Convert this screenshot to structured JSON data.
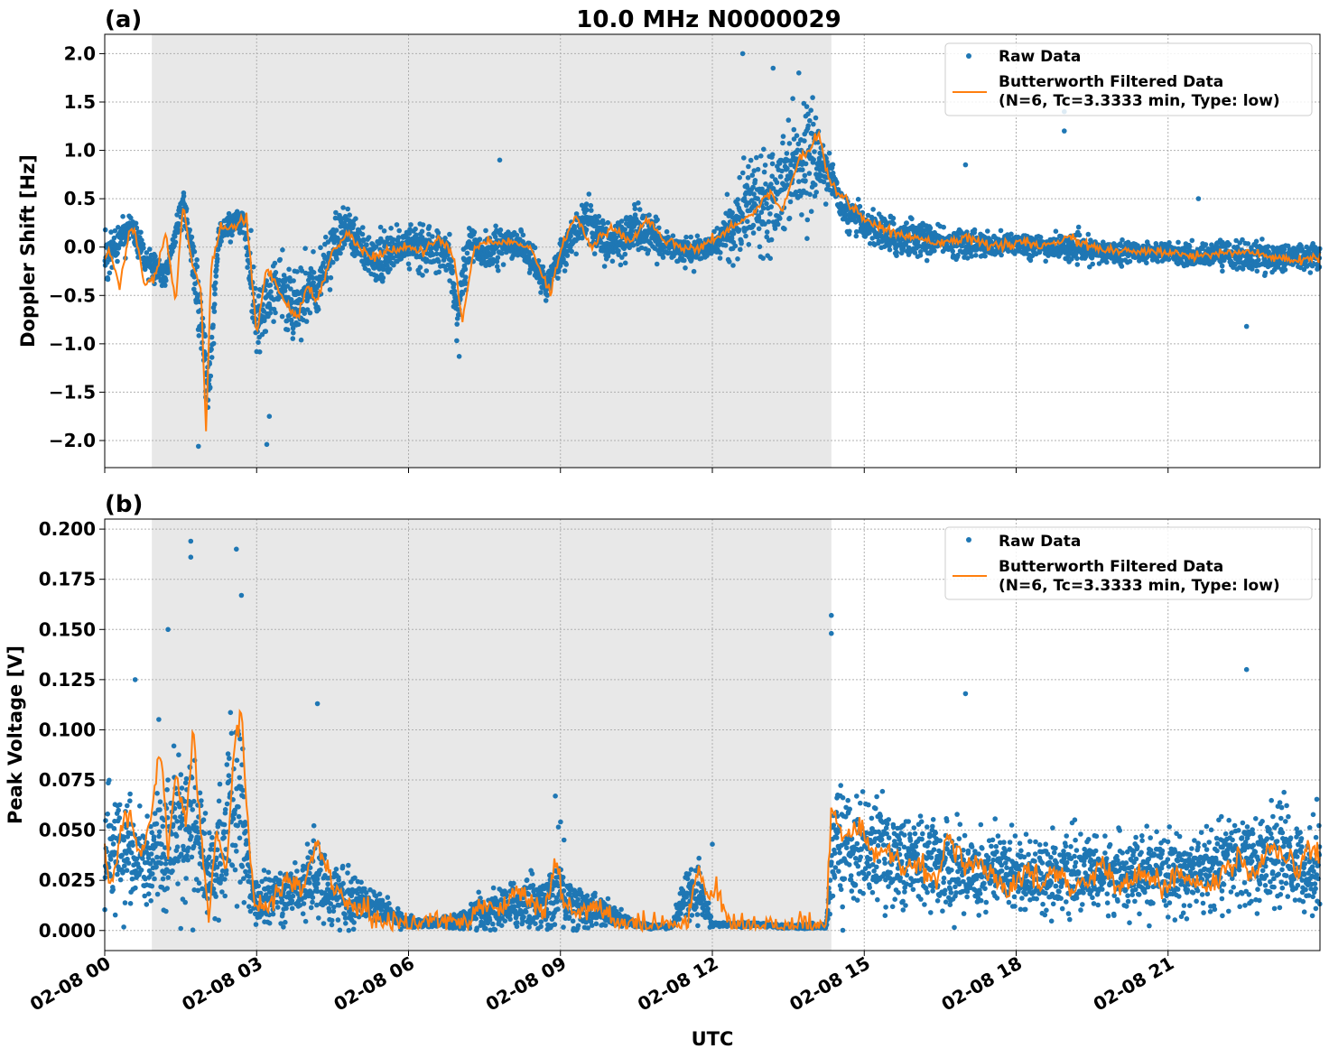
{
  "figure": {
    "title": "10.0 MHz N0000029",
    "xlabel": "UTC",
    "x_tick_labels": [
      "02-08 00",
      "02-08 03",
      "02-08 06",
      "02-08 09",
      "02-08 12",
      "02-08 15",
      "02-08 18",
      "02-08 21"
    ],
    "night_shading_hours": [
      0.93,
      14.35
    ],
    "colors": {
      "raw": "#1f77b4",
      "filtered": "#ff7f0e",
      "shade": "#e8e8e8",
      "grid": "#b0b0b0"
    }
  },
  "legend": {
    "raw_label": "Raw Data",
    "filtered_label_line1": "Butterworth Filtered Data",
    "filtered_label_line2": "(N=6, Tc=3.3333 min, Type: low)"
  },
  "chart_data": [
    {
      "panel": "(a)",
      "type": "line",
      "ylabel": "Doppler Shift [Hz]",
      "xlim_hours": [
        0,
        24
      ],
      "ylim": [
        -2.28,
        2.2
      ],
      "y_ticks": [
        -2.0,
        -1.5,
        -1.0,
        -0.5,
        0.0,
        0.5,
        1.0,
        1.5,
        2.0
      ],
      "y_tick_labels": [
        "−2.0",
        "−1.5",
        "−1.0",
        "−0.5",
        "0.0",
        "0.5",
        "1.0",
        "1.5",
        "2.0"
      ],
      "grid": true,
      "legend_position": "top-right",
      "series": [
        {
          "name": "Raw Data",
          "style": "points",
          "hours": [
            0.0,
            0.5,
            0.9,
            1.2,
            1.55,
            1.8,
            2.05,
            2.25,
            2.6,
            2.75,
            3.0,
            3.4,
            3.8,
            4.0,
            4.2,
            4.5,
            4.8,
            5.2,
            5.5,
            6.0,
            6.5,
            6.8,
            6.95,
            7.2,
            7.5,
            7.9,
            8.3,
            8.7,
            9.1,
            9.5,
            10.0,
            10.5,
            11.0,
            11.5,
            12.0,
            12.4,
            12.8,
            13.2,
            13.6,
            13.9,
            14.3,
            14.6,
            15.0,
            15.5,
            16.0,
            16.5,
            17.0,
            17.5,
            18.0,
            18.5,
            19.0,
            19.5,
            20.0,
            20.5,
            21.0,
            21.5,
            22.0,
            22.5,
            23.0,
            23.5,
            24.0
          ],
          "center": [
            -0.1,
            0.2,
            -0.2,
            -0.3,
            0.45,
            -0.3,
            -1.5,
            0.1,
            0.3,
            0.25,
            -0.8,
            -0.35,
            -0.7,
            -0.5,
            -0.45,
            0.05,
            0.2,
            -0.1,
            -0.1,
            0.05,
            -0.05,
            -0.1,
            -0.7,
            0.05,
            -0.05,
            0.0,
            0.0,
            -0.4,
            0.0,
            0.3,
            0.0,
            0.2,
            0.05,
            -0.05,
            0.0,
            0.2,
            0.5,
            0.55,
            0.9,
            0.95,
            0.8,
            0.35,
            0.25,
            0.1,
            0.1,
            0.05,
            0.05,
            0.0,
            0.05,
            0.0,
            0.0,
            -0.05,
            -0.05,
            -0.05,
            -0.05,
            -0.1,
            -0.05,
            -0.1,
            -0.1,
            -0.1,
            -0.1
          ],
          "spread": [
            0.25,
            0.12,
            0.2,
            0.12,
            0.12,
            0.3,
            0.35,
            0.12,
            0.1,
            0.12,
            0.45,
            0.3,
            0.35,
            0.3,
            0.3,
            0.25,
            0.25,
            0.2,
            0.25,
            0.2,
            0.22,
            0.2,
            0.25,
            0.2,
            0.2,
            0.2,
            0.2,
            0.15,
            0.2,
            0.2,
            0.2,
            0.25,
            0.15,
            0.12,
            0.1,
            0.3,
            0.5,
            0.5,
            0.5,
            0.55,
            0.2,
            0.15,
            0.15,
            0.2,
            0.2,
            0.12,
            0.15,
            0.12,
            0.12,
            0.12,
            0.12,
            0.12,
            0.1,
            0.1,
            0.1,
            0.1,
            0.12,
            0.15,
            0.15,
            0.12,
            0.15
          ],
          "outliers": [
            [
              1.85,
              -2.06
            ],
            [
              3.2,
              -2.04
            ],
            [
              3.25,
              -1.75
            ],
            [
              12.6,
              2.0
            ],
            [
              13.2,
              1.85
            ],
            [
              18.95,
              1.4
            ],
            [
              18.95,
              1.2
            ],
            [
              17.0,
              0.85
            ],
            [
              21.6,
              0.5
            ],
            [
              22.55,
              -0.82
            ],
            [
              7.8,
              0.9
            ],
            [
              7.0,
              -1.13
            ]
          ]
        },
        {
          "name": "Butterworth Filtered Data",
          "style": "line",
          "hours": [
            0.0,
            0.1,
            0.3,
            0.5,
            0.6,
            0.8,
            1.0,
            1.2,
            1.4,
            1.55,
            1.7,
            1.9,
            2.0,
            2.1,
            2.3,
            2.5,
            2.8,
            3.0,
            3.2,
            3.5,
            3.8,
            4.0,
            4.2,
            4.5,
            4.8,
            5.0,
            5.3,
            5.6,
            6.0,
            6.3,
            6.6,
            6.9,
            7.05,
            7.3,
            7.6,
            8.0,
            8.4,
            8.8,
            9.0,
            9.3,
            9.6,
            10.0,
            10.4,
            10.7,
            11.0,
            11.4,
            11.8,
            12.2,
            12.5,
            12.8,
            13.1,
            13.4,
            13.7,
            13.9,
            14.1,
            14.3,
            14.6,
            15.0,
            15.5,
            16.0,
            16.5,
            17.0,
            17.5,
            18.0,
            18.5,
            19.0,
            19.5,
            20.0,
            20.5,
            21.0,
            21.5,
            22.0,
            22.5,
            23.0,
            23.5,
            24.0
          ],
          "values": [
            -0.1,
            -0.05,
            -0.4,
            0.2,
            0.15,
            -0.4,
            -0.3,
            0.15,
            -0.55,
            0.45,
            -0.1,
            -0.45,
            -1.9,
            -0.2,
            0.2,
            0.2,
            0.3,
            -0.9,
            -0.2,
            -0.5,
            -0.75,
            -0.4,
            -0.55,
            -0.05,
            0.15,
            0.0,
            -0.1,
            -0.05,
            0.0,
            -0.05,
            0.1,
            -0.1,
            -0.8,
            0.0,
            0.05,
            0.05,
            0.0,
            -0.45,
            -0.05,
            0.35,
            0.0,
            0.2,
            0.05,
            0.3,
            0.1,
            0.0,
            0.0,
            0.15,
            0.25,
            0.35,
            0.55,
            0.4,
            0.9,
            1.0,
            1.2,
            0.7,
            0.5,
            0.3,
            0.15,
            0.1,
            0.05,
            0.1,
            0.0,
            0.05,
            0.0,
            0.1,
            0.0,
            -0.05,
            -0.05,
            -0.05,
            -0.1,
            -0.05,
            -0.05,
            -0.1,
            -0.15,
            -0.1
          ]
        }
      ]
    },
    {
      "panel": "(b)",
      "type": "line",
      "ylabel": "Peak Voltage [V]",
      "xlim_hours": [
        0,
        24
      ],
      "ylim": [
        -0.01,
        0.205
      ],
      "y_ticks": [
        0.0,
        0.025,
        0.05,
        0.075,
        0.1,
        0.125,
        0.15,
        0.175,
        0.2
      ],
      "y_tick_labels": [
        "0.000",
        "0.025",
        "0.050",
        "0.075",
        "0.100",
        "0.125",
        "0.150",
        "0.175",
        "0.200"
      ],
      "grid": true,
      "legend_position": "top-right",
      "series": [
        {
          "name": "Raw Data",
          "style": "points",
          "hours": [
            0.0,
            0.3,
            0.6,
            0.9,
            1.1,
            1.3,
            1.5,
            1.7,
            1.9,
            2.1,
            2.3,
            2.5,
            2.7,
            2.9,
            3.2,
            3.5,
            3.8,
            4.1,
            4.4,
            4.8,
            5.2,
            5.6,
            5.9,
            6.2,
            6.6,
            7.0,
            7.4,
            7.7,
            8.0,
            8.4,
            8.7,
            9.0,
            9.3,
            9.7,
            10.0,
            10.4,
            10.8,
            11.2,
            11.5,
            11.8,
            12.0,
            12.3,
            12.6,
            13.0,
            13.4,
            13.8,
            14.1,
            14.25,
            14.4,
            14.8,
            15.3,
            15.8,
            16.3,
            16.8,
            17.3,
            17.8,
            18.3,
            18.8,
            19.3,
            19.8,
            20.3,
            20.8,
            21.3,
            21.8,
            22.3,
            22.8,
            23.3,
            23.7,
            24.0
          ],
          "center": [
            0.035,
            0.045,
            0.035,
            0.03,
            0.045,
            0.045,
            0.05,
            0.055,
            0.04,
            0.025,
            0.04,
            0.06,
            0.06,
            0.015,
            0.015,
            0.02,
            0.02,
            0.03,
            0.02,
            0.015,
            0.015,
            0.008,
            0.005,
            0.004,
            0.004,
            0.005,
            0.008,
            0.01,
            0.012,
            0.015,
            0.012,
            0.02,
            0.012,
            0.01,
            0.007,
            0.004,
            0.002,
            0.002,
            0.02,
            0.015,
            0.003,
            0.003,
            0.003,
            0.003,
            0.002,
            0.002,
            0.002,
            0.002,
            0.045,
            0.04,
            0.04,
            0.035,
            0.035,
            0.03,
            0.03,
            0.03,
            0.028,
            0.028,
            0.028,
            0.028,
            0.028,
            0.028,
            0.028,
            0.03,
            0.035,
            0.035,
            0.038,
            0.03,
            0.035
          ],
          "spread": [
            0.025,
            0.03,
            0.022,
            0.025,
            0.03,
            0.035,
            0.04,
            0.04,
            0.03,
            0.02,
            0.03,
            0.045,
            0.04,
            0.01,
            0.012,
            0.015,
            0.012,
            0.02,
            0.015,
            0.012,
            0.01,
            0.006,
            0.003,
            0.002,
            0.002,
            0.004,
            0.008,
            0.01,
            0.01,
            0.015,
            0.01,
            0.025,
            0.01,
            0.008,
            0.006,
            0.002,
            0.001,
            0.001,
            0.012,
            0.01,
            0.001,
            0.001,
            0.001,
            0.001,
            0.001,
            0.001,
            0.001,
            0.001,
            0.03,
            0.025,
            0.025,
            0.022,
            0.022,
            0.02,
            0.02,
            0.018,
            0.017,
            0.017,
            0.017,
            0.017,
            0.017,
            0.017,
            0.017,
            0.02,
            0.022,
            0.022,
            0.025,
            0.018,
            0.025
          ],
          "outliers": [
            [
              1.7,
              0.194
            ],
            [
              1.7,
              0.186
            ],
            [
              2.6,
              0.19
            ],
            [
              2.7,
              0.167
            ],
            [
              1.25,
              0.15
            ],
            [
              0.6,
              0.125
            ],
            [
              14.35,
              0.157
            ],
            [
              14.35,
              0.148
            ],
            [
              22.55,
              0.13
            ],
            [
              17.0,
              0.118
            ],
            [
              4.2,
              0.113
            ],
            [
              8.9,
              0.067
            ],
            [
              12.0,
              0.043
            ]
          ]
        },
        {
          "name": "Butterworth Filtered Data",
          "style": "line",
          "hours": [
            0.0,
            0.15,
            0.3,
            0.5,
            0.7,
            0.9,
            1.1,
            1.25,
            1.4,
            1.6,
            1.75,
            1.9,
            2.05,
            2.2,
            2.4,
            2.55,
            2.7,
            2.85,
            3.0,
            3.3,
            3.6,
            3.9,
            4.2,
            4.5,
            4.8,
            5.1,
            5.4,
            5.7,
            6.0,
            6.4,
            6.8,
            7.2,
            7.5,
            7.8,
            8.1,
            8.4,
            8.7,
            8.9,
            9.1,
            9.4,
            9.7,
            10.0,
            10.3,
            10.6,
            10.9,
            11.2,
            11.5,
            11.7,
            11.9,
            12.1,
            12.3,
            12.6,
            13.0,
            13.4,
            13.8,
            14.1,
            14.25,
            14.35,
            14.6,
            14.9,
            15.2,
            15.5,
            15.8,
            16.1,
            16.4,
            16.7,
            17.0,
            17.3,
            17.6,
            17.9,
            18.2,
            18.5,
            18.8,
            19.1,
            19.4,
            19.7,
            20.0,
            20.3,
            20.6,
            20.9,
            21.2,
            21.5,
            21.8,
            22.1,
            22.4,
            22.7,
            23.0,
            23.3,
            23.6,
            23.8,
            24.0
          ],
          "values": [
            0.04,
            0.02,
            0.05,
            0.06,
            0.035,
            0.055,
            0.09,
            0.04,
            0.075,
            0.055,
            0.1,
            0.045,
            0.005,
            0.05,
            0.03,
            0.09,
            0.11,
            0.04,
            0.01,
            0.015,
            0.025,
            0.02,
            0.045,
            0.02,
            0.015,
            0.01,
            0.005,
            0.004,
            0.003,
            0.004,
            0.005,
            0.006,
            0.015,
            0.01,
            0.02,
            0.015,
            0.01,
            0.035,
            0.012,
            0.008,
            0.012,
            0.006,
            0.003,
            0.002,
            0.002,
            0.002,
            0.002,
            0.03,
            0.02,
            0.02,
            0.003,
            0.003,
            0.002,
            0.002,
            0.002,
            0.002,
            0.003,
            0.065,
            0.045,
            0.055,
            0.035,
            0.04,
            0.03,
            0.035,
            0.025,
            0.045,
            0.03,
            0.035,
            0.025,
            0.02,
            0.03,
            0.025,
            0.03,
            0.02,
            0.025,
            0.035,
            0.02,
            0.025,
            0.03,
            0.02,
            0.03,
            0.025,
            0.02,
            0.03,
            0.035,
            0.025,
            0.04,
            0.035,
            0.03,
            0.045,
            0.035
          ]
        }
      ]
    }
  ]
}
